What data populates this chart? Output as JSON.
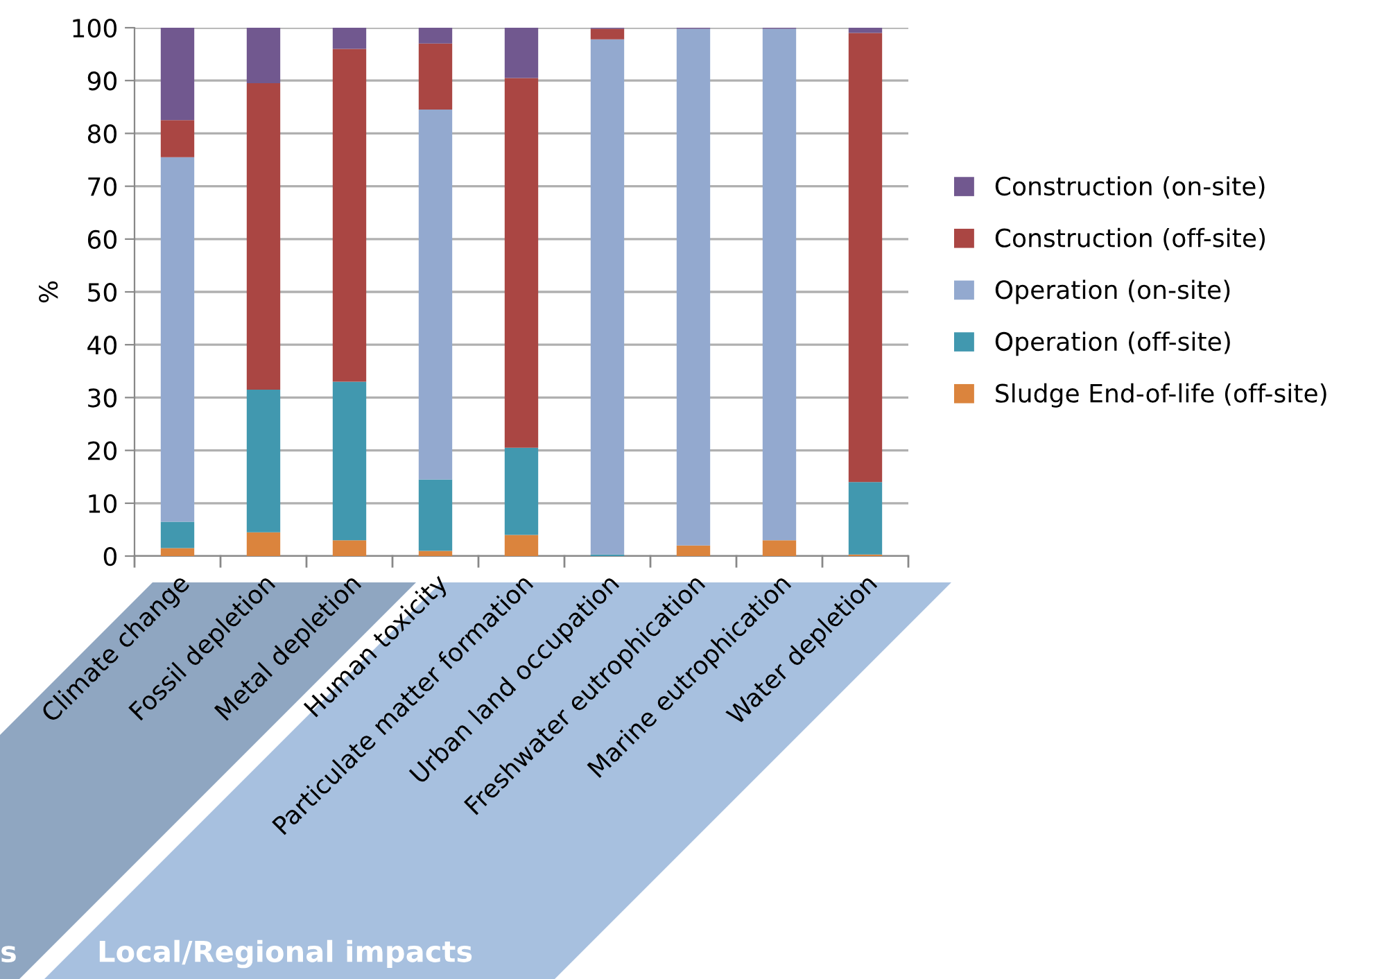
{
  "chart_data": {
    "type": "bar",
    "stacked": true,
    "ylabel": "%",
    "categories": [
      "Climate change",
      "Fossil depletion",
      "Metal depletion",
      "Human toxicity",
      "Particulate matter formation",
      "Urban land occupation",
      "Freshwater eutrophication",
      "Marine eutrophication",
      "Water depletion"
    ],
    "series": [
      {
        "name": "Sludge End-of-life (off-site)",
        "color": "#db843d",
        "values": [
          1.5,
          4.5,
          3,
          1,
          4,
          0,
          2,
          3,
          0.3
        ]
      },
      {
        "name": "Operation (off-site)",
        "color": "#4198af",
        "values": [
          5,
          27,
          30,
          13.5,
          16.5,
          0.3,
          0,
          0,
          13.7
        ]
      },
      {
        "name": "Operation (on-site)",
        "color": "#93a9cf",
        "values": [
          69,
          0,
          0,
          70,
          0,
          97.5,
          97.8,
          96.8,
          0
        ]
      },
      {
        "name": "Construction (off-site)",
        "color": "#aa4643",
        "values": [
          7,
          58,
          63,
          12.5,
          70,
          2,
          0,
          0,
          85
        ]
      },
      {
        "name": "Construction (on-site)",
        "color": "#71588f",
        "values": [
          17.5,
          10.5,
          4,
          3,
          9.5,
          0.2,
          0.2,
          0.2,
          1
        ]
      }
    ],
    "ylim": [
      0,
      100
    ],
    "yticks": [
      0,
      10,
      20,
      30,
      40,
      50,
      60,
      70,
      80,
      90,
      100
    ],
    "grid": "y",
    "legend": "right",
    "annotations": [
      "s",
      "Local/Regional impacts"
    ]
  }
}
